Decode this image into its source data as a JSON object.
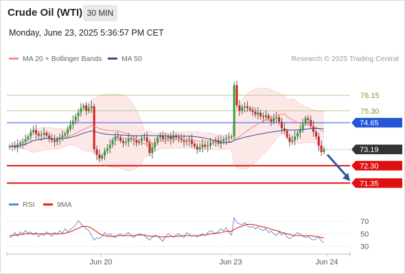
{
  "header": {
    "instrument": "Crude Oil (WTI)",
    "timeframe": "30 MIN",
    "datetime": "Monday, June 23, 2025 5:36:57 PM CET"
  },
  "legend": {
    "bollinger_label": "MA 20 + Bollinger Bands",
    "ma50_label": "MA 50",
    "credit": "Research © 2025 Trading Central",
    "rsi_label": "RSI",
    "rsi_ma_label": "9MA"
  },
  "colors": {
    "bollinger": "#f28b82",
    "bollinger_fill": "#fde2e2",
    "ma50": "#2c4f8c",
    "resistance": "#a8d08d",
    "pivot": "#2257d6",
    "support": "#e01010",
    "candle_up": "#2f9e3a",
    "candle_down": "#d42020",
    "rsi": "#5b7fd6",
    "rsi_ma": "#e02020",
    "arrow": "#2c5aa0",
    "last_price": "#333333"
  },
  "chart_data": [
    {
      "type": "candlestick",
      "x_labels": [
        "Jun 20",
        "Jun 23",
        "Jun 24"
      ],
      "ylim": [
        70.8,
        77.8
      ],
      "levels": [
        {
          "label": "76.15",
          "value": 76.15,
          "kind": "resistance"
        },
        {
          "label": "75.30",
          "value": 75.3,
          "kind": "resistance"
        },
        {
          "label": "74.65",
          "value": 74.65,
          "kind": "pivot"
        },
        {
          "label": "73.19",
          "value": 73.19,
          "kind": "last"
        },
        {
          "label": "72.30",
          "value": 72.3,
          "kind": "support"
        },
        {
          "label": "71.35",
          "value": 71.35,
          "kind": "support"
        }
      ],
      "projection": {
        "from": 72.9,
        "to": 71.35,
        "direction": "down"
      },
      "close": [
        73.35,
        73.4,
        73.3,
        73.45,
        73.55,
        73.6,
        73.75,
        73.9,
        74.15,
        74.25,
        74.05,
        73.95,
        74.0,
        74.1,
        73.95,
        73.8,
        73.7,
        73.6,
        73.75,
        73.85,
        73.95,
        74.05,
        74.3,
        74.55,
        74.75,
        75.0,
        75.2,
        75.45,
        75.6,
        75.3,
        75.45,
        75.55,
        73.2,
        72.9,
        72.7,
        72.85,
        73.1,
        73.25,
        73.45,
        73.7,
        73.9,
        73.85,
        73.65,
        73.55,
        73.6,
        73.8,
        73.75,
        73.7,
        73.55,
        73.65,
        73.8,
        73.85,
        73.6,
        73.0,
        73.3,
        73.55,
        73.85,
        73.95,
        73.75,
        73.8,
        73.9,
        73.75,
        73.95,
        73.85,
        73.8,
        73.7,
        73.6,
        73.65,
        73.75,
        73.5,
        73.35,
        73.2,
        73.3,
        73.45,
        73.35,
        73.4,
        73.55,
        73.6,
        73.7,
        73.5,
        73.65,
        73.75,
        73.8,
        73.85,
        73.9,
        76.7,
        75.6,
        75.3,
        75.5,
        75.55,
        75.45,
        75.35,
        75.25,
        75.1,
        75.2,
        75.0,
        74.95,
        75.05,
        74.85,
        74.7,
        74.9,
        74.95,
        74.7,
        74.35,
        74.2,
        73.85,
        73.6,
        73.7,
        73.9,
        74.1,
        74.3,
        74.6,
        74.9,
        74.8,
        74.45,
        74.15,
        73.9,
        73.4,
        73.05,
        73.19
      ],
      "rsi": [
        44,
        47,
        52,
        46,
        53,
        50,
        55,
        51,
        53,
        48,
        52,
        45,
        50,
        47,
        53,
        50,
        46,
        52,
        49,
        55,
        51,
        58,
        53,
        57,
        60,
        64,
        71,
        66,
        62,
        58,
        55,
        47,
        40,
        44,
        42,
        46,
        52,
        48,
        50,
        46,
        44,
        48,
        50,
        46,
        49,
        52,
        47,
        44,
        48,
        50,
        49,
        47,
        43,
        40,
        44,
        48,
        46,
        42,
        38,
        46,
        50,
        47,
        44,
        48,
        50,
        46,
        44,
        52,
        49,
        46,
        47,
        45,
        48,
        50,
        47,
        52,
        55,
        53,
        50,
        54,
        58,
        55,
        60,
        52,
        48,
        76,
        68,
        66,
        64,
        68,
        63,
        60,
        62,
        58,
        61,
        57,
        55,
        58,
        52,
        54,
        50,
        47,
        53,
        48,
        52,
        45,
        42,
        45,
        48,
        52,
        49,
        46,
        44,
        46,
        42,
        40,
        42,
        45,
        38,
        36
      ],
      "rsi_ma": [
        47,
        47,
        48,
        48,
        49,
        49,
        50,
        50,
        50,
        50,
        50,
        50,
        50,
        50,
        50,
        50,
        50,
        50,
        50,
        50,
        50,
        51,
        52,
        53,
        55,
        57,
        59,
        61,
        62,
        62,
        61,
        59,
        56,
        53,
        50,
        48,
        47,
        46,
        46,
        46,
        46,
        47,
        47,
        47,
        47,
        47,
        47,
        47,
        48,
        48,
        48,
        48,
        47,
        46,
        46,
        46,
        46,
        45,
        45,
        45,
        45,
        46,
        46,
        46,
        46,
        47,
        47,
        47,
        47,
        47,
        47,
        47,
        47,
        48,
        48,
        49,
        50,
        50,
        51,
        51,
        52,
        53,
        54,
        54,
        54,
        57,
        59,
        61,
        62,
        64,
        65,
        65,
        65,
        64,
        63,
        62,
        61,
        60,
        59,
        57,
        56,
        55,
        54,
        52,
        51,
        50,
        49,
        48,
        47,
        47,
        47,
        47,
        47,
        47,
        47,
        46,
        46,
        45,
        44,
        43
      ],
      "rsi_ticks": [
        70,
        50,
        30
      ]
    }
  ]
}
